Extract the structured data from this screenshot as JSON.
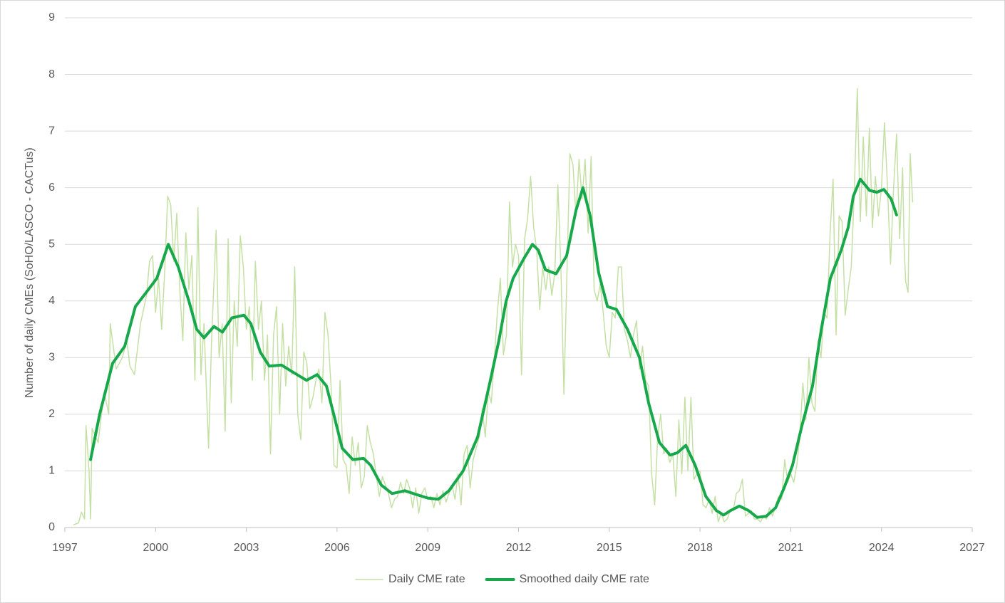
{
  "chart_data": {
    "type": "line",
    "ylabel": "Number of daily CMEs (SoHO/LASCO - CACTus)",
    "xlim": [
      1997,
      2027
    ],
    "xticks": [
      1997,
      2000,
      2003,
      2006,
      2009,
      2012,
      2015,
      2018,
      2021,
      2024,
      2027
    ],
    "ylim": [
      0,
      9
    ],
    "yticks": [
      0,
      1,
      2,
      3,
      4,
      5,
      6,
      7,
      8,
      9
    ],
    "grid": true,
    "legend": "bottom",
    "series": [
      {
        "name": "Daily CME rate",
        "color": "#c5e0a5",
        "width": 1.5,
        "x": [
          1997.3,
          1997.45,
          1997.55,
          1997.65,
          1997.7,
          1997.8,
          1997.85,
          1997.9,
          1998.1,
          1998.3,
          1998.45,
          1998.5,
          1998.7,
          1998.9,
          1999.05,
          1999.15,
          1999.3,
          1999.5,
          1999.7,
          1999.8,
          1999.9,
          2000.0,
          2000.1,
          2000.2,
          2000.3,
          2000.4,
          2000.5,
          2000.6,
          2000.7,
          2000.8,
          2000.9,
          2001.0,
          2001.1,
          2001.2,
          2001.3,
          2001.4,
          2001.5,
          2001.6,
          2001.75,
          2001.85,
          2002.0,
          2002.1,
          2002.2,
          2002.3,
          2002.4,
          2002.5,
          2002.6,
          2002.7,
          2002.8,
          2002.9,
          2003.0,
          2003.1,
          2003.2,
          2003.3,
          2003.4,
          2003.5,
          2003.6,
          2003.7,
          2003.8,
          2003.9,
          2004.0,
          2004.1,
          2004.2,
          2004.3,
          2004.4,
          2004.5,
          2004.6,
          2004.7,
          2004.8,
          2004.9,
          2005.0,
          2005.1,
          2005.2,
          2005.3,
          2005.4,
          2005.5,
          2005.6,
          2005.7,
          2005.8,
          2005.9,
          2006.0,
          2006.1,
          2006.2,
          2006.3,
          2006.4,
          2006.5,
          2006.6,
          2006.7,
          2006.8,
          2006.9,
          2007.0,
          2007.1,
          2007.2,
          2007.3,
          2007.4,
          2007.5,
          2007.6,
          2007.7,
          2007.8,
          2007.9,
          2008.0,
          2008.1,
          2008.2,
          2008.3,
          2008.4,
          2008.5,
          2008.6,
          2008.7,
          2008.8,
          2008.9,
          2009.0,
          2009.1,
          2009.2,
          2009.3,
          2009.4,
          2009.5,
          2009.6,
          2009.7,
          2009.8,
          2009.9,
          2010.0,
          2010.1,
          2010.2,
          2010.3,
          2010.4,
          2010.5,
          2010.6,
          2010.7,
          2010.8,
          2010.9,
          2011.0,
          2011.1,
          2011.2,
          2011.3,
          2011.4,
          2011.5,
          2011.6,
          2011.7,
          2011.8,
          2011.9,
          2012.0,
          2012.1,
          2012.2,
          2012.3,
          2012.4,
          2012.5,
          2012.6,
          2012.7,
          2012.8,
          2012.9,
          2013.0,
          2013.1,
          2013.2,
          2013.3,
          2013.4,
          2013.5,
          2013.6,
          2013.7,
          2013.8,
          2013.9,
          2014.0,
          2014.1,
          2014.2,
          2014.3,
          2014.4,
          2014.5,
          2014.6,
          2014.7,
          2014.8,
          2014.9,
          2015.0,
          2015.1,
          2015.2,
          2015.3,
          2015.4,
          2015.5,
          2015.6,
          2015.7,
          2015.8,
          2015.9,
          2016.0,
          2016.1,
          2016.2,
          2016.3,
          2016.4,
          2016.5,
          2016.6,
          2016.7,
          2016.8,
          2016.9,
          2017.0,
          2017.1,
          2017.2,
          2017.3,
          2017.4,
          2017.5,
          2017.6,
          2017.7,
          2017.8,
          2017.9,
          2018.0,
          2018.1,
          2018.2,
          2018.3,
          2018.4,
          2018.5,
          2018.6,
          2018.7,
          2018.8,
          2018.9,
          2019.0,
          2019.1,
          2019.2,
          2019.3,
          2019.4,
          2019.5,
          2019.6,
          2019.7,
          2019.8,
          2019.9,
          2020.0,
          2020.1,
          2020.2,
          2020.3,
          2020.4,
          2020.5,
          2020.6,
          2020.7,
          2020.8,
          2020.9,
          2021.0,
          2021.1,
          2021.2,
          2021.3,
          2021.4,
          2021.5,
          2021.6,
          2021.7,
          2021.8,
          2021.9,
          2022.0,
          2022.1,
          2022.2,
          2022.3,
          2022.4,
          2022.5,
          2022.6,
          2022.7,
          2022.8,
          2022.9,
          2023.0,
          2023.1,
          2023.2,
          2023.3,
          2023.4,
          2023.5,
          2023.6,
          2023.7,
          2023.8,
          2023.9,
          2024.0,
          2024.1,
          2024.2,
          2024.3,
          2024.4,
          2024.5,
          2024.6,
          2024.7,
          2024.75,
          2024.8,
          2024.88,
          2024.95,
          2025.03
        ],
        "values": [
          0.05,
          0.08,
          0.27,
          0.15,
          1.8,
          1.0,
          0.15,
          1.75,
          1.5,
          2.4,
          2.0,
          3.6,
          2.8,
          3.0,
          3.3,
          2.85,
          2.7,
          3.6,
          4.1,
          4.7,
          4.8,
          3.8,
          4.4,
          3.5,
          4.5,
          5.85,
          5.7,
          4.7,
          5.55,
          4.2,
          3.3,
          5.2,
          4.2,
          4.8,
          2.6,
          5.65,
          2.7,
          3.6,
          1.4,
          3.3,
          5.25,
          3.0,
          3.6,
          1.7,
          5.1,
          2.2,
          4.0,
          3.2,
          5.15,
          4.6,
          3.5,
          3.9,
          2.6,
          4.7,
          3.5,
          4.0,
          2.6,
          3.4,
          1.3,
          3.4,
          3.9,
          2.0,
          3.6,
          2.5,
          3.2,
          2.7,
          4.6,
          2.0,
          1.55,
          3.1,
          2.9,
          2.1,
          2.3,
          2.6,
          2.8,
          2.2,
          3.8,
          3.4,
          2.5,
          1.1,
          1.05,
          2.6,
          1.2,
          1.1,
          0.6,
          1.6,
          1.1,
          1.5,
          0.7,
          0.9,
          1.8,
          1.5,
          1.3,
          0.9,
          0.55,
          0.9,
          0.75,
          0.6,
          0.35,
          0.5,
          0.55,
          0.8,
          0.6,
          0.85,
          0.7,
          0.35,
          0.7,
          0.25,
          0.6,
          0.7,
          0.5,
          0.55,
          0.35,
          0.6,
          0.4,
          0.65,
          0.45,
          0.6,
          0.75,
          0.5,
          0.95,
          0.4,
          1.3,
          1.45,
          0.7,
          1.2,
          1.4,
          1.6,
          2.1,
          1.6,
          2.4,
          2.2,
          3.0,
          3.8,
          4.4,
          3.05,
          3.4,
          5.75,
          4.6,
          5.0,
          4.8,
          2.7,
          5.1,
          5.45,
          6.2,
          5.3,
          4.9,
          3.85,
          4.6,
          4.2,
          4.6,
          4.1,
          4.5,
          6.05,
          4.6,
          2.35,
          4.5,
          6.6,
          6.4,
          5.5,
          6.5,
          5.8,
          6.5,
          5.2,
          6.55,
          4.2,
          4.0,
          4.3,
          3.8,
          3.2,
          3.0,
          3.8,
          3.7,
          4.6,
          4.6,
          3.5,
          3.3,
          3.0,
          3.4,
          3.65,
          2.8,
          3.2,
          2.6,
          2.5,
          0.95,
          0.4,
          1.6,
          2.0,
          1.3,
          1.4,
          1.15,
          1.3,
          0.55,
          1.9,
          0.95,
          2.3,
          1.0,
          2.3,
          0.85,
          0.95,
          1.0,
          0.4,
          0.35,
          0.5,
          0.25,
          0.55,
          0.1,
          0.25,
          0.1,
          0.15,
          0.3,
          0.3,
          0.6,
          0.65,
          0.85,
          0.2,
          0.25,
          0.3,
          0.15,
          0.15,
          0.1,
          0.2,
          0.15,
          0.35,
          0.2,
          0.4,
          0.55,
          0.5,
          1.2,
          0.8,
          0.95,
          0.8,
          1.1,
          1.6,
          2.55,
          1.9,
          3.0,
          2.2,
          2.05,
          3.3,
          3.0,
          3.8,
          3.7,
          5.2,
          6.15,
          3.4,
          5.5,
          5.4,
          3.75,
          4.2,
          4.6,
          5.9,
          7.75,
          5.4,
          6.9,
          5.5,
          7.05,
          5.3,
          6.2,
          5.5,
          6.0,
          7.15,
          6.0,
          4.65,
          6.0,
          6.95,
          5.1,
          6.35,
          4.95,
          4.35,
          4.15,
          6.6,
          5.75
        ]
      },
      {
        "name": "Smoothed daily CME rate",
        "color": "#16a84a",
        "width": 4,
        "x": [
          1997.85,
          1998.15,
          1998.58,
          1998.98,
          1999.33,
          1999.69,
          2000.04,
          2000.42,
          2000.75,
          2001.1,
          2001.36,
          2001.6,
          2001.93,
          2002.21,
          2002.52,
          2002.92,
          2003.15,
          2003.46,
          2003.76,
          2004.16,
          2004.52,
          2004.99,
          2005.34,
          2005.65,
          2005.89,
          2006.17,
          2006.52,
          2006.88,
          2007.11,
          2007.46,
          2007.82,
          2008.24,
          2008.64,
          2009.0,
          2009.35,
          2009.7,
          2010.17,
          2010.65,
          2011.07,
          2011.35,
          2011.59,
          2011.82,
          2012.18,
          2012.46,
          2012.65,
          2012.89,
          2013.24,
          2013.59,
          2013.9,
          2014.13,
          2014.37,
          2014.65,
          2014.94,
          2015.24,
          2015.6,
          2016.0,
          2016.3,
          2016.66,
          2017.01,
          2017.25,
          2017.53,
          2017.84,
          2018.19,
          2018.54,
          2018.78,
          2019.01,
          2019.3,
          2019.6,
          2019.89,
          2020.19,
          2020.5,
          2020.78,
          2021.06,
          2021.37,
          2021.72,
          2022.01,
          2022.31,
          2022.67,
          2022.9,
          2023.07,
          2023.3,
          2023.61,
          2023.85,
          2024.08,
          2024.32,
          2024.5
        ],
        "values": [
          1.2,
          2.0,
          2.9,
          3.2,
          3.9,
          4.15,
          4.4,
          5.0,
          4.6,
          4.0,
          3.5,
          3.35,
          3.55,
          3.45,
          3.7,
          3.75,
          3.6,
          3.1,
          2.85,
          2.87,
          2.75,
          2.6,
          2.7,
          2.5,
          2.0,
          1.4,
          1.2,
          1.22,
          1.1,
          0.75,
          0.6,
          0.65,
          0.58,
          0.52,
          0.5,
          0.65,
          1.0,
          1.6,
          2.6,
          3.3,
          4.0,
          4.4,
          4.75,
          5.0,
          4.9,
          4.55,
          4.48,
          4.8,
          5.6,
          6.0,
          5.5,
          4.5,
          3.9,
          3.85,
          3.5,
          3.0,
          2.2,
          1.5,
          1.28,
          1.32,
          1.45,
          1.1,
          0.55,
          0.3,
          0.22,
          0.3,
          0.38,
          0.3,
          0.18,
          0.2,
          0.35,
          0.7,
          1.1,
          1.8,
          2.5,
          3.5,
          4.4,
          4.9,
          5.3,
          5.85,
          6.15,
          5.95,
          5.92,
          5.97,
          5.8,
          5.52
        ]
      }
    ]
  }
}
